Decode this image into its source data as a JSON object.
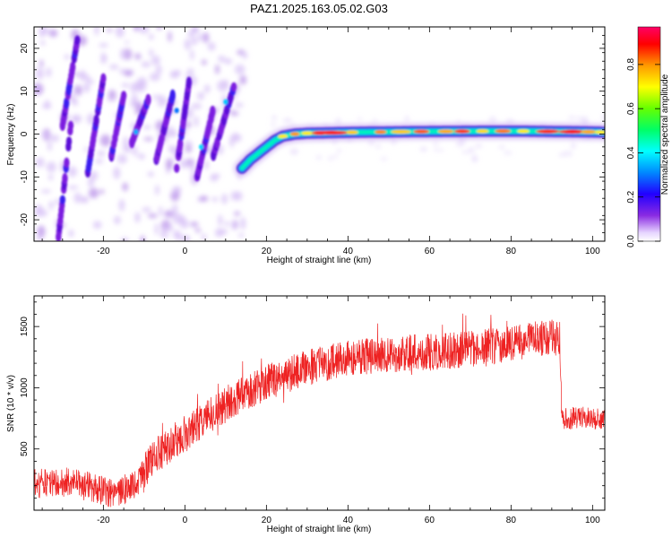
{
  "title": "PAZ1.2025.163.05.02.G03",
  "chart_data": [
    {
      "type": "heatmap",
      "xlabel": "Height of straight line (km)",
      "ylabel": "Frequency (Hz)",
      "xlim": [
        -37,
        103
      ],
      "ylim": [
        -25,
        25
      ],
      "xticks": [
        "-20",
        "0",
        "20",
        "40",
        "60",
        "80",
        "100"
      ],
      "yticks": [
        "-20",
        "-10",
        "0",
        "10",
        "20"
      ],
      "colorbar": {
        "label": "Normalized spectral amplitude",
        "range": [
          0.0,
          0.97
        ],
        "ticks": [
          "0.0",
          "0.2",
          "0.4",
          "0.6",
          "0.8"
        ],
        "colormap": "rainbow (violet to magenta)"
      },
      "tone": [
        [
          14,
          -8
        ],
        [
          16,
          -6
        ],
        [
          18,
          -4.5
        ],
        [
          20,
          -3
        ],
        [
          22,
          -1.5
        ],
        [
          24,
          -0.5
        ],
        [
          27,
          0
        ],
        [
          30,
          0.2
        ],
        [
          40,
          0.4
        ],
        [
          60,
          0.6
        ],
        [
          80,
          0.7
        ],
        [
          100,
          0.5
        ],
        [
          103,
          0.4
        ]
      ],
      "stripes": [
        {
          "x": [
            -31,
            -28
          ],
          "y": [
            -24,
            2
          ]
        },
        {
          "x": [
            -30,
            -26
          ],
          "y": [
            2,
            24
          ]
        },
        {
          "x": [
            -24,
            -20
          ],
          "y": [
            -10,
            13
          ]
        },
        {
          "x": [
            -18,
            -15
          ],
          "y": [
            -5,
            9
          ]
        },
        {
          "x": [
            -13,
            -9
          ],
          "y": [
            -2,
            8
          ]
        },
        {
          "x": [
            -7,
            -3
          ],
          "y": [
            -6,
            9
          ]
        },
        {
          "x": [
            -2,
            1
          ],
          "y": [
            -8,
            12
          ]
        },
        {
          "x": [
            3,
            7
          ],
          "y": [
            -10,
            6
          ]
        },
        {
          "x": [
            7,
            12
          ],
          "y": [
            -5,
            11
          ]
        }
      ]
    },
    {
      "type": "line",
      "xlabel": "Height of straight line (km)",
      "ylabel": "SNR (10 * v/v)",
      "xlim": [
        -37,
        103
      ],
      "ylim": [
        0,
        1750
      ],
      "xticks": [
        "-20",
        "0",
        "20",
        "40",
        "60",
        "80",
        "100"
      ],
      "yticks": [
        "500",
        "1000",
        "1500"
      ],
      "color": "#ee2222",
      "trend": [
        [
          -37,
          220
        ],
        [
          -27,
          230
        ],
        [
          -22,
          180
        ],
        [
          -17,
          120
        ],
        [
          -12,
          220
        ],
        [
          -7,
          450
        ],
        [
          -2,
          580
        ],
        [
          3,
          700
        ],
        [
          8,
          820
        ],
        [
          13,
          930
        ],
        [
          18,
          1010
        ],
        [
          23,
          1080
        ],
        [
          28,
          1140
        ],
        [
          33,
          1190
        ],
        [
          38,
          1230
        ],
        [
          43,
          1250
        ],
        [
          48,
          1270
        ],
        [
          53,
          1280
        ],
        [
          58,
          1290
        ],
        [
          63,
          1300
        ],
        [
          68,
          1310
        ],
        [
          73,
          1330
        ],
        [
          78,
          1350
        ],
        [
          83,
          1380
        ],
        [
          88,
          1400
        ],
        [
          92,
          1410
        ],
        [
          92.5,
          740
        ],
        [
          97,
          760
        ],
        [
          103,
          740
        ]
      ]
    }
  ]
}
